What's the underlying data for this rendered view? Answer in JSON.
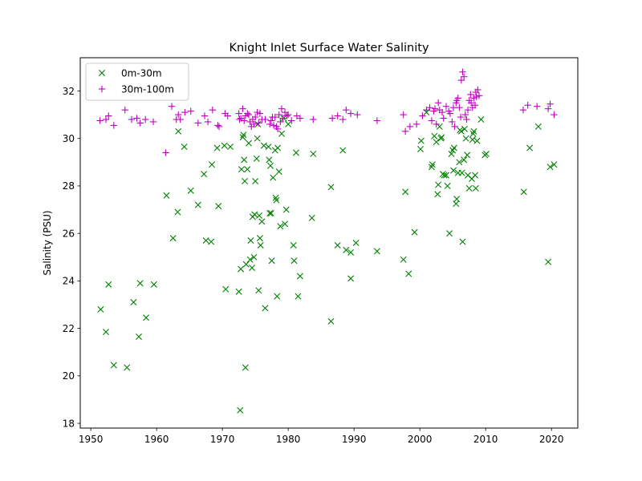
{
  "chart_data": {
    "type": "scatter",
    "title": "Knight Inlet Surface Water Salinity",
    "xlabel": "",
    "ylabel": "Salinity (PSU)",
    "xlim": [
      1948.4,
      2024.0
    ],
    "ylim": [
      17.8,
      33.4
    ],
    "xticks": [
      1950,
      1960,
      1970,
      1980,
      1990,
      2000,
      2010,
      2020
    ],
    "yticks": [
      18,
      20,
      22,
      24,
      26,
      28,
      30,
      32
    ],
    "grid": false,
    "legend": "top-left",
    "series": [
      {
        "name": "0m-30m",
        "marker": "x",
        "color": "#008000",
        "points": [
          [
            1951.5,
            22.8
          ],
          [
            1952.3,
            21.85
          ],
          [
            1952.7,
            23.85
          ],
          [
            1953.5,
            20.45
          ],
          [
            1955.5,
            20.35
          ],
          [
            1956.5,
            23.1
          ],
          [
            1957.3,
            21.65
          ],
          [
            1957.5,
            23.9
          ],
          [
            1958.4,
            22.45
          ],
          [
            1959.6,
            23.85
          ],
          [
            1961.5,
            27.6
          ],
          [
            1962.5,
            25.8
          ],
          [
            1963.2,
            26.9
          ],
          [
            1963.3,
            30.3
          ],
          [
            1964.2,
            29.65
          ],
          [
            1965.2,
            27.8
          ],
          [
            1966.3,
            27.2
          ],
          [
            1967.2,
            28.5
          ],
          [
            1967.5,
            25.7
          ],
          [
            1968.3,
            25.65
          ],
          [
            1968.4,
            28.9
          ],
          [
            1969.2,
            29.6
          ],
          [
            1969.4,
            27.15
          ],
          [
            1970.3,
            29.7
          ],
          [
            1970.5,
            23.65
          ],
          [
            1971.2,
            29.65
          ],
          [
            1972.5,
            23.55
          ],
          [
            1972.7,
            18.55
          ],
          [
            1972.8,
            24.5
          ],
          [
            1972.9,
            28.7
          ],
          [
            1973.1,
            30.05
          ],
          [
            1973.2,
            30.15
          ],
          [
            1973.3,
            29.1
          ],
          [
            1973.4,
            28.2
          ],
          [
            1973.5,
            20.35
          ],
          [
            1973.6,
            24.7
          ],
          [
            1973.8,
            28.7
          ],
          [
            1974.0,
            29.8
          ],
          [
            1974.2,
            24.9
          ],
          [
            1974.3,
            25.7
          ],
          [
            1974.5,
            24.55
          ],
          [
            1974.6,
            26.7
          ],
          [
            1974.8,
            25.0
          ],
          [
            1974.9,
            26.8
          ],
          [
            1975.0,
            28.2
          ],
          [
            1975.2,
            29.15
          ],
          [
            1975.3,
            30.0
          ],
          [
            1975.4,
            30.6
          ],
          [
            1975.5,
            23.6
          ],
          [
            1975.6,
            26.75
          ],
          [
            1975.7,
            25.8
          ],
          [
            1975.8,
            25.5
          ],
          [
            1976.0,
            26.5
          ],
          [
            1976.3,
            29.7
          ],
          [
            1976.5,
            22.85
          ],
          [
            1977.0,
            29.65
          ],
          [
            1977.1,
            29.1
          ],
          [
            1977.2,
            26.85
          ],
          [
            1977.3,
            28.85
          ],
          [
            1977.4,
            26.85
          ],
          [
            1977.5,
            24.85
          ],
          [
            1977.7,
            28.35
          ],
          [
            1978.0,
            29.5
          ],
          [
            1978.1,
            27.5
          ],
          [
            1978.2,
            27.4
          ],
          [
            1978.3,
            23.35
          ],
          [
            1978.4,
            29.6
          ],
          [
            1978.6,
            28.6
          ],
          [
            1978.8,
            26.3
          ],
          [
            1979.0,
            30.2
          ],
          [
            1979.3,
            30.85
          ],
          [
            1979.5,
            26.4
          ],
          [
            1979.7,
            27.0
          ],
          [
            1980.0,
            30.6
          ],
          [
            1980.8,
            25.5
          ],
          [
            1980.9,
            24.85
          ],
          [
            1981.2,
            29.4
          ],
          [
            1981.5,
            23.35
          ],
          [
            1981.8,
            24.2
          ],
          [
            1983.6,
            26.65
          ],
          [
            1983.8,
            29.35
          ],
          [
            1986.5,
            27.95
          ],
          [
            1986.5,
            22.3
          ],
          [
            1987.5,
            25.5
          ],
          [
            1988.3,
            29.5
          ],
          [
            1988.8,
            25.3
          ],
          [
            1989.5,
            24.1
          ],
          [
            1989.5,
            25.2
          ],
          [
            1990.3,
            25.6
          ],
          [
            1993.5,
            25.25
          ],
          [
            1997.5,
            24.9
          ],
          [
            1997.8,
            27.75
          ],
          [
            1998.3,
            24.3
          ],
          [
            1999.2,
            26.05
          ],
          [
            2000.1,
            29.55
          ],
          [
            2000.2,
            29.9
          ],
          [
            2001.0,
            31.1
          ],
          [
            2001.8,
            28.8
          ],
          [
            2001.9,
            28.9
          ],
          [
            2002.2,
            30.1
          ],
          [
            2002.5,
            29.85
          ],
          [
            2002.7,
            27.65
          ],
          [
            2002.8,
            28.05
          ],
          [
            2003.0,
            30.5
          ],
          [
            2003.2,
            30.0
          ],
          [
            2003.3,
            30.05
          ],
          [
            2003.5,
            28.5
          ],
          [
            2003.7,
            28.45
          ],
          [
            2004.0,
            28.45
          ],
          [
            2004.2,
            28.0
          ],
          [
            2004.5,
            26.0
          ],
          [
            2004.8,
            29.35
          ],
          [
            2005.0,
            29.5
          ],
          [
            2005.1,
            28.65
          ],
          [
            2005.2,
            29.6
          ],
          [
            2005.5,
            27.25
          ],
          [
            2005.6,
            27.45
          ],
          [
            2005.8,
            28.55
          ],
          [
            2006.0,
            29.0
          ],
          [
            2006.1,
            30.35
          ],
          [
            2006.3,
            30.3
          ],
          [
            2006.4,
            28.55
          ],
          [
            2006.5,
            25.65
          ],
          [
            2006.7,
            29.1
          ],
          [
            2006.8,
            30.4
          ],
          [
            2007.0,
            30.0
          ],
          [
            2007.2,
            29.3
          ],
          [
            2007.3,
            28.45
          ],
          [
            2007.5,
            27.9
          ],
          [
            2007.9,
            28.3
          ],
          [
            2008.0,
            29.95
          ],
          [
            2008.1,
            30.2
          ],
          [
            2008.2,
            30.3
          ],
          [
            2008.4,
            28.45
          ],
          [
            2008.5,
            27.9
          ],
          [
            2008.7,
            29.9
          ],
          [
            2009.3,
            30.8
          ],
          [
            2009.9,
            29.3
          ],
          [
            2010.1,
            29.35
          ],
          [
            2015.8,
            27.75
          ],
          [
            2016.7,
            29.6
          ],
          [
            2018.0,
            30.5
          ],
          [
            2019.5,
            24.8
          ],
          [
            2019.8,
            28.8
          ],
          [
            2020.4,
            28.9
          ]
        ]
      },
      {
        "name": "30m-100m",
        "marker": "+",
        "color": "#bf00bf",
        "points": [
          [
            1951.4,
            30.75
          ],
          [
            1952.3,
            30.8
          ],
          [
            1952.7,
            30.95
          ],
          [
            1953.5,
            30.55
          ],
          [
            1955.2,
            31.2
          ],
          [
            1956.2,
            30.8
          ],
          [
            1957.0,
            30.85
          ],
          [
            1957.5,
            30.65
          ],
          [
            1958.3,
            30.8
          ],
          [
            1959.5,
            30.7
          ],
          [
            1961.4,
            29.4
          ],
          [
            1962.3,
            31.35
          ],
          [
            1963.0,
            30.8
          ],
          [
            1963.3,
            31.0
          ],
          [
            1963.6,
            30.8
          ],
          [
            1964.3,
            31.1
          ],
          [
            1965.2,
            31.15
          ],
          [
            1966.3,
            30.65
          ],
          [
            1967.3,
            30.95
          ],
          [
            1967.8,
            30.7
          ],
          [
            1968.5,
            31.2
          ],
          [
            1969.3,
            30.55
          ],
          [
            1969.5,
            30.5
          ],
          [
            1970.4,
            31.05
          ],
          [
            1970.8,
            30.95
          ],
          [
            1972.5,
            31.05
          ],
          [
            1972.6,
            30.8
          ],
          [
            1972.8,
            30.85
          ],
          [
            1973.1,
            31.25
          ],
          [
            1973.3,
            30.75
          ],
          [
            1973.5,
            30.95
          ],
          [
            1973.8,
            31.05
          ],
          [
            1974.0,
            31.0
          ],
          [
            1974.2,
            30.7
          ],
          [
            1974.4,
            30.5
          ],
          [
            1974.6,
            30.8
          ],
          [
            1974.8,
            30.6
          ],
          [
            1975.0,
            30.9
          ],
          [
            1975.3,
            31.1
          ],
          [
            1975.5,
            30.65
          ],
          [
            1975.7,
            31.05
          ],
          [
            1976.0,
            30.8
          ],
          [
            1976.5,
            30.8
          ],
          [
            1977.2,
            30.6
          ],
          [
            1977.4,
            30.75
          ],
          [
            1977.6,
            30.9
          ],
          [
            1977.8,
            30.55
          ],
          [
            1978.0,
            30.9
          ],
          [
            1978.2,
            30.5
          ],
          [
            1978.4,
            30.4
          ],
          [
            1978.6,
            31.0
          ],
          [
            1978.8,
            30.7
          ],
          [
            1979.0,
            31.25
          ],
          [
            1979.2,
            30.85
          ],
          [
            1979.5,
            31.1
          ],
          [
            1979.8,
            30.95
          ],
          [
            1980.0,
            31.0
          ],
          [
            1980.5,
            30.75
          ],
          [
            1981.3,
            30.95
          ],
          [
            1981.8,
            30.85
          ],
          [
            1983.8,
            30.8
          ],
          [
            1986.7,
            30.85
          ],
          [
            1987.5,
            30.95
          ],
          [
            1988.3,
            30.8
          ],
          [
            1988.8,
            31.2
          ],
          [
            1989.5,
            31.05
          ],
          [
            1990.5,
            31.0
          ],
          [
            1993.5,
            30.75
          ],
          [
            1997.5,
            31.0
          ],
          [
            1997.8,
            30.3
          ],
          [
            1998.5,
            30.5
          ],
          [
            1999.5,
            30.6
          ],
          [
            2000.4,
            30.95
          ],
          [
            2001.0,
            31.2
          ],
          [
            2001.5,
            31.3
          ],
          [
            2001.8,
            30.75
          ],
          [
            2002.1,
            31.15
          ],
          [
            2002.3,
            31.25
          ],
          [
            2002.5,
            30.6
          ],
          [
            2002.8,
            31.5
          ],
          [
            2003.0,
            31.2
          ],
          [
            2003.4,
            31.1
          ],
          [
            2003.6,
            30.85
          ],
          [
            2004.0,
            31.35
          ],
          [
            2004.4,
            31.15
          ],
          [
            2004.6,
            31.05
          ],
          [
            2004.9,
            30.7
          ],
          [
            2005.1,
            31.3
          ],
          [
            2005.3,
            30.5
          ],
          [
            2005.5,
            31.5
          ],
          [
            2005.6,
            31.6
          ],
          [
            2005.8,
            31.7
          ],
          [
            2006.0,
            31.3
          ],
          [
            2006.2,
            30.9
          ],
          [
            2006.3,
            32.45
          ],
          [
            2006.5,
            32.8
          ],
          [
            2006.7,
            32.6
          ],
          [
            2006.9,
            31.0
          ],
          [
            2007.1,
            30.8
          ],
          [
            2007.3,
            31.2
          ],
          [
            2007.5,
            31.6
          ],
          [
            2007.7,
            31.85
          ],
          [
            2007.8,
            31.5
          ],
          [
            2008.0,
            31.3
          ],
          [
            2008.2,
            31.7
          ],
          [
            2008.4,
            31.4
          ],
          [
            2008.5,
            31.95
          ],
          [
            2008.6,
            31.75
          ],
          [
            2008.8,
            32.05
          ],
          [
            2009.0,
            31.8
          ],
          [
            2015.7,
            31.2
          ],
          [
            2016.4,
            31.4
          ],
          [
            2017.8,
            31.35
          ],
          [
            2019.5,
            31.25
          ],
          [
            2019.8,
            31.45
          ],
          [
            2020.4,
            31.0
          ]
        ]
      }
    ]
  }
}
